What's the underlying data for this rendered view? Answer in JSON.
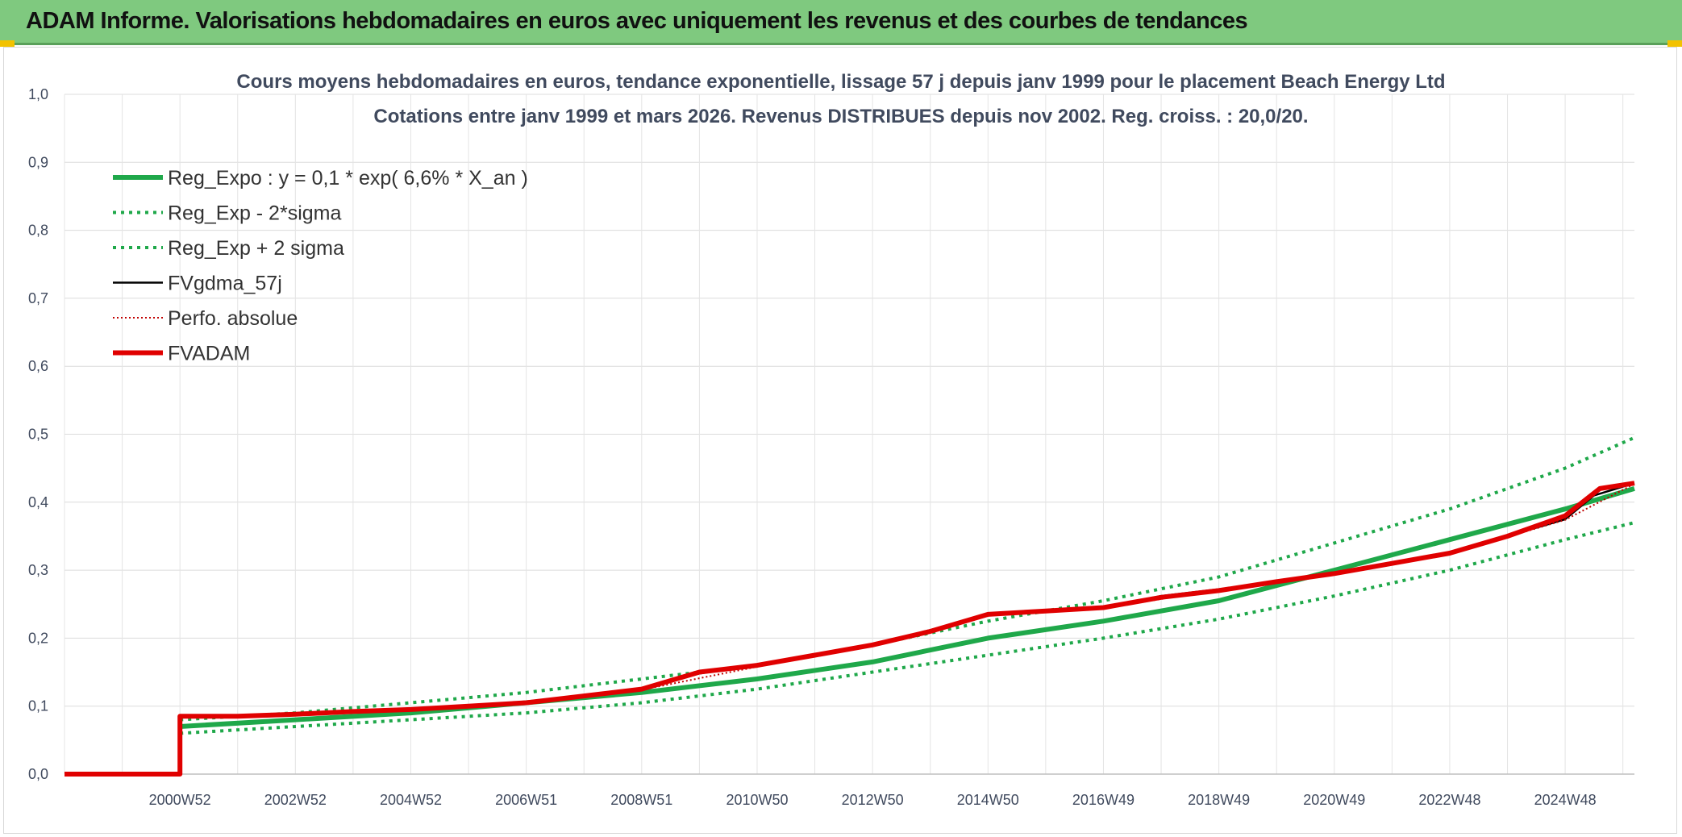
{
  "banner": {
    "title": "ADAM Informe. Valorisations hebdomadaires en euros avec uniquement les revenus et des courbes de tendances"
  },
  "chart_data": {
    "type": "line",
    "title_line1": "Cours moyens hebdomadaires en euros, tendance exponentielle, lissage 57 j depuis janv 1999 pour le placement Beach Energy Ltd",
    "title_line2": "Cotations entre janv 1999 et mars 2026. Revenus DISTRIBUES depuis nov 2002. Reg. croiss. : 20,0/20.",
    "xlabel": "",
    "ylabel": "",
    "x_range": [
      1999.0,
      2026.2
    ],
    "ylim": [
      0.0,
      1.0
    ],
    "y_ticks": [
      "0,0",
      "0,1",
      "0,2",
      "0,3",
      "0,4",
      "0,5",
      "0,6",
      "0,7",
      "0,8",
      "0,9",
      "1,0"
    ],
    "x_tick_labels": [
      "2000W52",
      "2002W52",
      "2004W52",
      "2006W51",
      "2008W51",
      "2010W50",
      "2012W50",
      "2014W50",
      "2016W49",
      "2018W49",
      "2020W49",
      "2022W48",
      "2024W48"
    ],
    "x_tick_positions": [
      2001.0,
      2003.0,
      2005.0,
      2007.0,
      2009.0,
      2011.0,
      2013.0,
      2015.0,
      2017.0,
      2019.0,
      2021.0,
      2023.0,
      2025.0
    ],
    "grid": true,
    "legend_position": "top-left",
    "series": [
      {
        "name": "Reg_Expo : y = 0,1 * exp( 6,6% *  X_an )",
        "color": "#1fa84a",
        "style": "solid-thick",
        "x": [
          2001.0,
          2003.0,
          2005.0,
          2007.0,
          2009.0,
          2011.0,
          2013.0,
          2015.0,
          2017.0,
          2019.0,
          2021.0,
          2023.0,
          2025.0,
          2026.2
        ],
        "y": [
          0.07,
          0.08,
          0.09,
          0.105,
          0.12,
          0.14,
          0.165,
          0.2,
          0.225,
          0.255,
          0.3,
          0.345,
          0.39,
          0.42
        ]
      },
      {
        "name": "Reg_Exp - 2*sigma",
        "color": "#1fa84a",
        "style": "dotted",
        "x": [
          2001.0,
          2003.0,
          2005.0,
          2007.0,
          2009.0,
          2011.0,
          2013.0,
          2015.0,
          2017.0,
          2019.0,
          2021.0,
          2023.0,
          2025.0,
          2026.2
        ],
        "y": [
          0.06,
          0.07,
          0.08,
          0.09,
          0.105,
          0.125,
          0.15,
          0.175,
          0.2,
          0.228,
          0.262,
          0.3,
          0.345,
          0.37
        ]
      },
      {
        "name": "Reg_Exp + 2 sigma",
        "color": "#1fa84a",
        "style": "dotted",
        "x": [
          2001.0,
          2003.0,
          2005.0,
          2007.0,
          2009.0,
          2011.0,
          2013.0,
          2015.0,
          2017.0,
          2019.0,
          2021.0,
          2023.0,
          2025.0,
          2026.2
        ],
        "y": [
          0.08,
          0.09,
          0.105,
          0.12,
          0.14,
          0.16,
          0.19,
          0.225,
          0.255,
          0.29,
          0.34,
          0.39,
          0.45,
          0.495
        ]
      },
      {
        "name": "FVgdma_57j",
        "color": "#000000",
        "style": "solid",
        "x": [
          1999.0,
          2001.0,
          2001.0,
          2003.0,
          2005.0,
          2007.0,
          2009.0,
          2010.0,
          2011.0,
          2012.0,
          2013.0,
          2014.0,
          2015.0,
          2016.0,
          2017.0,
          2018.0,
          2019.0,
          2020.0,
          2021.0,
          2022.0,
          2023.0,
          2024.0,
          2025.0,
          2025.5,
          2026.2
        ],
        "y": [
          0.0,
          0.0,
          0.085,
          0.088,
          0.095,
          0.105,
          0.125,
          0.148,
          0.16,
          0.175,
          0.19,
          0.212,
          0.235,
          0.24,
          0.245,
          0.262,
          0.272,
          0.283,
          0.295,
          0.31,
          0.325,
          0.35,
          0.375,
          0.41,
          0.428
        ]
      },
      {
        "name": "Perfo. absolue",
        "color": "#c00000",
        "style": "dotted-thin",
        "x": [
          1999.0,
          2001.0,
          2001.0,
          2003.0,
          2005.0,
          2007.0,
          2009.0,
          2011.0,
          2013.0,
          2015.0,
          2017.0,
          2019.0,
          2021.0,
          2023.0,
          2025.0,
          2026.2
        ],
        "y": [
          0.0,
          0.0,
          0.085,
          0.087,
          0.094,
          0.104,
          0.124,
          0.158,
          0.188,
          0.233,
          0.244,
          0.271,
          0.294,
          0.324,
          0.374,
          0.427
        ]
      },
      {
        "name": "FVADAM",
        "color": "#e00000",
        "style": "solid-thick",
        "x": [
          1999.0,
          2001.0,
          2001.0,
          2002.0,
          2003.0,
          2004.0,
          2005.0,
          2006.0,
          2007.0,
          2008.0,
          2009.0,
          2010.0,
          2011.0,
          2012.0,
          2013.0,
          2014.0,
          2015.0,
          2016.0,
          2017.0,
          2018.0,
          2019.0,
          2020.0,
          2021.0,
          2022.0,
          2023.0,
          2024.0,
          2025.0,
          2025.6,
          2026.2
        ],
        "y": [
          0.0,
          0.0,
          0.085,
          0.085,
          0.088,
          0.092,
          0.095,
          0.1,
          0.105,
          0.115,
          0.125,
          0.15,
          0.16,
          0.175,
          0.19,
          0.21,
          0.235,
          0.24,
          0.245,
          0.26,
          0.27,
          0.283,
          0.295,
          0.31,
          0.325,
          0.35,
          0.38,
          0.42,
          0.428
        ]
      }
    ]
  }
}
